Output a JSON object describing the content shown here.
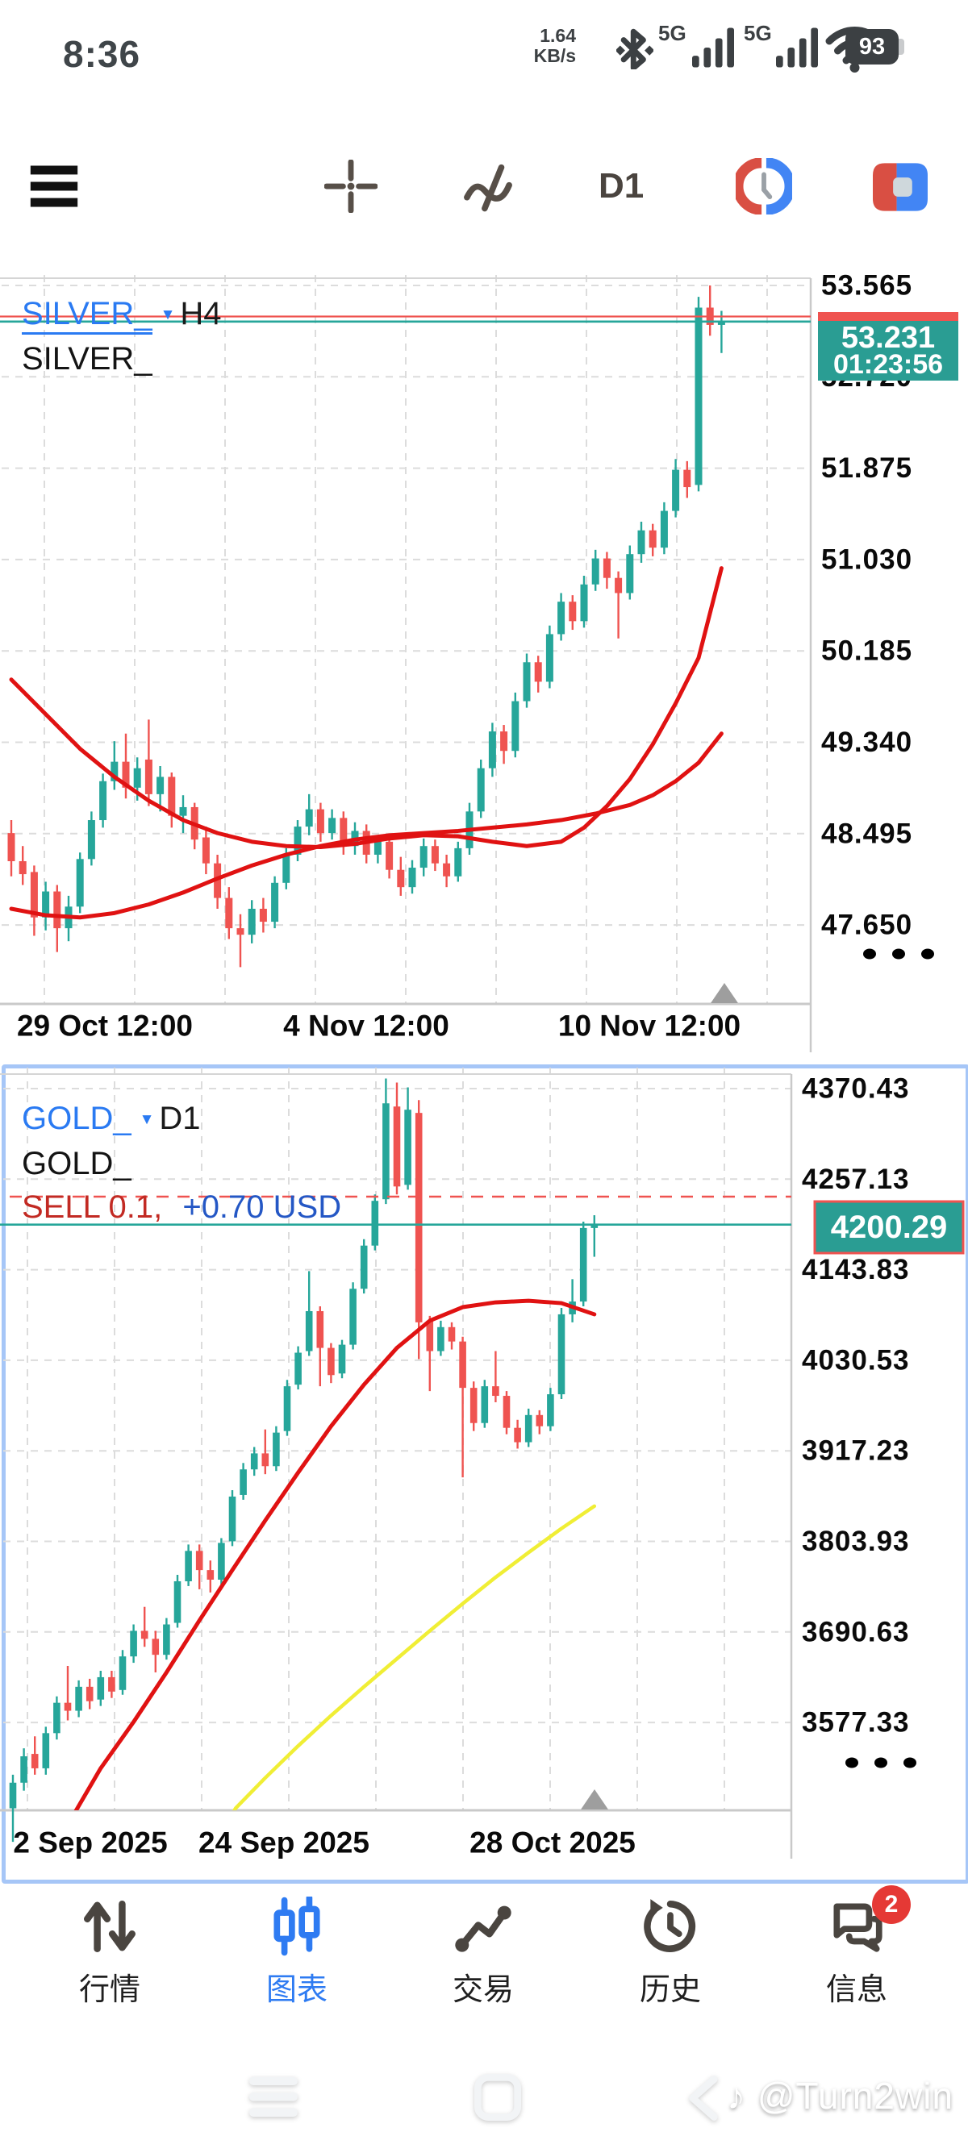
{
  "status_bar": {
    "time": "8:36",
    "net_speed": "1.64",
    "net_speed_unit": "KB/s",
    "sim1": "5G",
    "sim2": "5G",
    "battery": "93"
  },
  "toolbar": {
    "timeframe": "D1"
  },
  "charts": [
    {
      "symbol": "SILVER_",
      "timeframe": "H4",
      "watermark": "SILVER_",
      "badge_price": "53.231",
      "badge_countdown": "01:23:56",
      "dots": "● ● ●"
    },
    {
      "symbol": "GOLD_",
      "timeframe": "D1",
      "watermark": "GOLD_",
      "position_label": "SELL 0.1,",
      "profit_label": "+0.70 USD",
      "badge_price": "4200.29",
      "dots": "● ● ●"
    }
  ],
  "chart_data": [
    {
      "type": "candlestick",
      "title": "SILVER_ H4",
      "y_ticks": [
        53.565,
        52.72,
        51.875,
        51.03,
        50.185,
        49.34,
        48.495,
        47.65
      ],
      "x_ticks": [
        "29 Oct 12:00",
        "4 Nov 12:00",
        "10 Nov 12:00"
      ],
      "bid": 53.231,
      "ask": 53.278,
      "countdown": "01:23:56",
      "candles": [
        [
          48.5,
          48.62,
          48.1,
          48.24
        ],
        [
          48.24,
          48.38,
          48.02,
          48.12
        ],
        [
          48.14,
          48.2,
          47.55,
          47.72
        ],
        [
          47.72,
          48.05,
          47.6,
          47.96
        ],
        [
          47.96,
          48.02,
          47.4,
          47.62
        ],
        [
          47.62,
          47.92,
          47.5,
          47.82
        ],
        [
          47.82,
          48.32,
          47.76,
          48.26
        ],
        [
          48.26,
          48.7,
          48.2,
          48.62
        ],
        [
          48.62,
          49.05,
          48.55,
          48.98
        ],
        [
          48.98,
          49.35,
          48.9,
          49.16
        ],
        [
          49.16,
          49.42,
          48.82,
          48.92
        ],
        [
          48.92,
          49.2,
          48.8,
          49.1
        ],
        [
          49.18,
          49.55,
          48.75,
          48.86
        ],
        [
          48.86,
          49.12,
          48.7,
          49.02
        ],
        [
          49.02,
          49.06,
          48.55,
          48.66
        ],
        [
          48.66,
          48.85,
          48.5,
          48.74
        ],
        [
          48.74,
          48.78,
          48.35,
          48.44
        ],
        [
          48.46,
          48.56,
          48.12,
          48.22
        ],
        [
          48.22,
          48.3,
          47.8,
          47.9
        ],
        [
          47.9,
          48.0,
          47.52,
          47.62
        ],
        [
          47.62,
          47.75,
          47.26,
          47.56
        ],
        [
          47.56,
          47.88,
          47.48,
          47.8
        ],
        [
          47.8,
          47.9,
          47.58,
          47.68
        ],
        [
          47.68,
          48.1,
          47.62,
          48.04
        ],
        [
          48.04,
          48.36,
          47.98,
          48.3
        ],
        [
          48.3,
          48.62,
          48.24,
          48.56
        ],
        [
          48.56,
          48.86,
          48.48,
          48.72
        ],
        [
          48.72,
          48.78,
          48.42,
          48.5
        ],
        [
          48.5,
          48.72,
          48.44,
          48.64
        ],
        [
          48.64,
          48.7,
          48.3,
          48.38
        ],
        [
          48.38,
          48.6,
          48.3,
          48.52
        ],
        [
          48.52,
          48.58,
          48.22,
          48.3
        ],
        [
          48.3,
          48.48,
          48.22,
          48.42
        ],
        [
          48.42,
          48.46,
          48.08,
          48.16
        ],
        [
          48.16,
          48.28,
          47.92,
          48.0
        ],
        [
          48.0,
          48.25,
          47.94,
          48.18
        ],
        [
          48.18,
          48.45,
          48.1,
          48.38
        ],
        [
          48.38,
          48.44,
          48.15,
          48.22
        ],
        [
          48.22,
          48.3,
          48.0,
          48.1
        ],
        [
          48.1,
          48.42,
          48.05,
          48.36
        ],
        [
          48.36,
          48.78,
          48.3,
          48.7
        ],
        [
          48.7,
          49.18,
          48.64,
          49.1
        ],
        [
          49.1,
          49.52,
          49.02,
          49.44
        ],
        [
          49.44,
          49.5,
          49.14,
          49.26
        ],
        [
          49.26,
          49.8,
          49.2,
          49.72
        ],
        [
          49.72,
          50.16,
          49.66,
          50.08
        ],
        [
          50.08,
          50.14,
          49.8,
          49.9
        ],
        [
          49.9,
          50.42,
          49.84,
          50.34
        ],
        [
          50.34,
          50.72,
          50.28,
          50.64
        ],
        [
          50.64,
          50.7,
          50.38,
          50.46
        ],
        [
          50.46,
          50.88,
          50.4,
          50.8
        ],
        [
          50.8,
          51.12,
          50.74,
          51.04
        ],
        [
          51.04,
          51.1,
          50.76,
          50.86
        ],
        [
          50.86,
          50.92,
          50.3,
          50.72
        ],
        [
          50.72,
          51.16,
          50.66,
          51.08
        ],
        [
          51.08,
          51.38,
          51.0,
          51.3
        ],
        [
          51.3,
          51.36,
          51.06,
          51.14
        ],
        [
          51.14,
          51.56,
          51.08,
          51.48
        ],
        [
          51.48,
          51.96,
          51.42,
          51.86
        ],
        [
          51.86,
          51.94,
          51.6,
          51.7
        ],
        [
          51.72,
          53.46,
          51.66,
          53.36
        ],
        [
          53.36,
          53.565,
          53.1,
          53.2
        ],
        [
          53.2,
          53.33,
          52.94,
          53.231
        ]
      ],
      "ma": [
        {
          "name": "ma-fast",
          "color": "#e01212",
          "points": [
            [
              0,
              49.92
            ],
            [
              3,
              49.6
            ],
            [
              6,
              49.28
            ],
            [
              9,
              49.02
            ],
            [
              12,
              48.8
            ],
            [
              15,
              48.62
            ],
            [
              18,
              48.5
            ],
            [
              21,
              48.42
            ],
            [
              24,
              48.38
            ],
            [
              27,
              48.37
            ],
            [
              30,
              48.4
            ],
            [
              33,
              48.45
            ],
            [
              36,
              48.48
            ],
            [
              39,
              48.47
            ],
            [
              42,
              48.42
            ],
            [
              45,
              48.38
            ],
            [
              48,
              48.42
            ],
            [
              50,
              48.55
            ],
            [
              52,
              48.75
            ],
            [
              54,
              49.0
            ],
            [
              56,
              49.32
            ],
            [
              58,
              49.7
            ],
            [
              60,
              50.12
            ],
            [
              62,
              50.95
            ]
          ]
        },
        {
          "name": "ma-slow",
          "color": "#e01212",
          "points": [
            [
              0,
              47.8
            ],
            [
              3,
              47.74
            ],
            [
              6,
              47.72
            ],
            [
              9,
              47.76
            ],
            [
              12,
              47.84
            ],
            [
              15,
              47.95
            ],
            [
              18,
              48.08
            ],
            [
              21,
              48.2
            ],
            [
              24,
              48.3
            ],
            [
              27,
              48.38
            ],
            [
              30,
              48.44
            ],
            [
              33,
              48.48
            ],
            [
              36,
              48.5
            ],
            [
              39,
              48.52
            ],
            [
              42,
              48.55
            ],
            [
              45,
              48.58
            ],
            [
              48,
              48.62
            ],
            [
              51,
              48.68
            ],
            [
              54,
              48.76
            ],
            [
              56,
              48.85
            ],
            [
              58,
              48.98
            ],
            [
              60,
              49.15
            ],
            [
              62,
              49.42
            ]
          ]
        }
      ]
    },
    {
      "type": "candlestick",
      "title": "GOLD_ D1",
      "y_ticks": [
        4370.43,
        4257.13,
        4143.83,
        4030.53,
        3917.23,
        3803.93,
        3690.63,
        3577.33
      ],
      "x_ticks": [
        "2 Sep 2025",
        "24 Sep 2025",
        "28 Oct 2025"
      ],
      "bid": 4200.29,
      "position_price": 4200.99,
      "candles": [
        [
          3470,
          3512,
          3428,
          3502
        ],
        [
          3502,
          3545,
          3492,
          3535
        ],
        [
          3538,
          3560,
          3512,
          3520
        ],
        [
          3520,
          3572,
          3512,
          3564
        ],
        [
          3564,
          3610,
          3556,
          3602
        ],
        [
          3602,
          3648,
          3580,
          3592
        ],
        [
          3592,
          3630,
          3584,
          3622
        ],
        [
          3622,
          3632,
          3594,
          3604
        ],
        [
          3606,
          3642,
          3598,
          3634
        ],
        [
          3634,
          3642,
          3608,
          3616
        ],
        [
          3618,
          3668,
          3612,
          3660
        ],
        [
          3660,
          3700,
          3652,
          3692
        ],
        [
          3692,
          3722,
          3672,
          3682
        ],
        [
          3682,
          3692,
          3640,
          3662
        ],
        [
          3662,
          3708,
          3656,
          3700
        ],
        [
          3702,
          3762,
          3696,
          3754
        ],
        [
          3754,
          3800,
          3748,
          3792
        ],
        [
          3792,
          3800,
          3744,
          3768
        ],
        [
          3768,
          3780,
          3740,
          3756
        ],
        [
          3756,
          3808,
          3750,
          3802
        ],
        [
          3804,
          3868,
          3798,
          3860
        ],
        [
          3862,
          3902,
          3856,
          3894
        ],
        [
          3894,
          3922,
          3886,
          3914
        ],
        [
          3914,
          3944,
          3888,
          3898
        ],
        [
          3898,
          3948,
          3892,
          3940
        ],
        [
          3942,
          4006,
          3936,
          3998
        ],
        [
          4000,
          4048,
          3994,
          4040
        ],
        [
          4042,
          4142,
          4036,
          4092
        ],
        [
          4092,
          4098,
          3998,
          4046
        ],
        [
          4046,
          4052,
          4002,
          4012
        ],
        [
          4014,
          4056,
          4008,
          4050
        ],
        [
          4050,
          4128,
          4044,
          4120
        ],
        [
          4120,
          4182,
          4114,
          4174
        ],
        [
          4174,
          4238,
          4168,
          4230
        ],
        [
          4232,
          4383,
          4226,
          4352
        ],
        [
          4348,
          4378,
          4238,
          4248
        ],
        [
          4250,
          4372,
          4244,
          4344
        ],
        [
          4340,
          4356,
          4032,
          4078
        ],
        [
          4080,
          4086,
          3992,
          4042
        ],
        [
          4042,
          4080,
          4036,
          4072
        ],
        [
          4072,
          4078,
          4044,
          4054
        ],
        [
          4054,
          4060,
          3884,
          3996
        ],
        [
          3996,
          4004,
          3942,
          3952
        ],
        [
          3952,
          4006,
          3946,
          3998
        ],
        [
          3998,
          4042,
          3978,
          3986
        ],
        [
          3986,
          3992,
          3938,
          3946
        ],
        [
          3946,
          3956,
          3920,
          3928
        ],
        [
          3928,
          3970,
          3922,
          3962
        ],
        [
          3962,
          3968,
          3938,
          3948
        ],
        [
          3948,
          3996,
          3942,
          3988
        ],
        [
          3988,
          4096,
          3982,
          4088
        ],
        [
          4088,
          4132,
          4078,
          4104
        ],
        [
          4104,
          4204,
          4098,
          4196
        ],
        [
          4196,
          4212,
          4160,
          4200
        ]
      ],
      "ma": [
        {
          "name": "ma-red",
          "color": "#e01212",
          "points": [
            [
              4.6,
              3440
            ],
            [
              8,
              3520
            ],
            [
              11,
              3578
            ],
            [
              14,
              3640
            ],
            [
              17,
              3705
            ],
            [
              20,
              3768
            ],
            [
              23,
              3830
            ],
            [
              26,
              3890
            ],
            [
              29,
              3948
            ],
            [
              32,
              4000
            ],
            [
              35,
              4046
            ],
            [
              38,
              4080
            ],
            [
              41,
              4097
            ],
            [
              44,
              4103
            ],
            [
              47,
              4105
            ],
            [
              50,
              4102
            ],
            [
              53,
              4088
            ]
          ]
        },
        {
          "name": "ma-yellow",
          "color": "#f0ee35",
          "points": [
            [
              19,
              3440
            ],
            [
              20.3,
              3470
            ],
            [
              23,
              3508
            ],
            [
              26,
              3548
            ],
            [
              29,
              3586
            ],
            [
              32,
              3622
            ],
            [
              35,
              3657
            ],
            [
              38,
              3692
            ],
            [
              41,
              3726
            ],
            [
              44,
              3759
            ],
            [
              47,
              3790
            ],
            [
              50,
              3820
            ],
            [
              53,
              3848
            ]
          ]
        }
      ]
    }
  ],
  "bottom_nav": {
    "items": [
      {
        "label": "行情"
      },
      {
        "label": "图表"
      },
      {
        "label": "交易"
      },
      {
        "label": "历史"
      },
      {
        "label": "信息"
      }
    ],
    "messages_badge": "2",
    "active_color": "#2e7bf2"
  },
  "system_nav": {
    "watermark": "@Turn2win",
    "note_icon": "♪"
  }
}
